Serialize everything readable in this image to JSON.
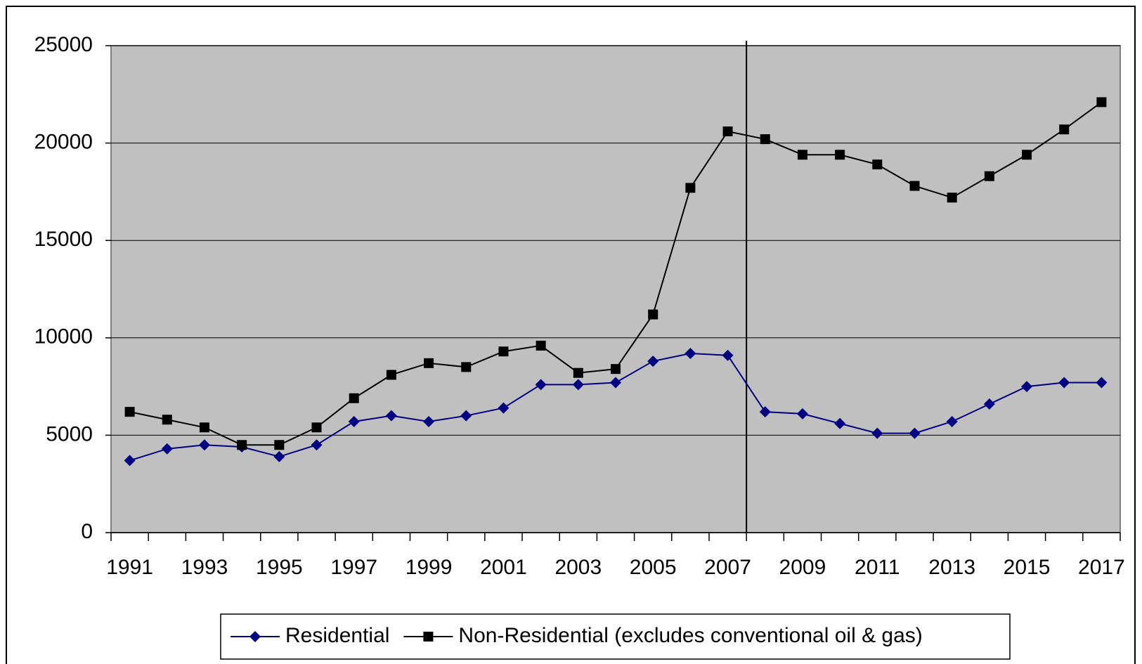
{
  "chart_data": {
    "type": "line",
    "categories": [
      "1991",
      null,
      "1993",
      null,
      "1995",
      null,
      "1997",
      null,
      "1999",
      null,
      "2001",
      null,
      "2003",
      null,
      "2005",
      null,
      "2007",
      null,
      "2009",
      null,
      "2011",
      null,
      "2013",
      null,
      "2015",
      null,
      "2017"
    ],
    "series": [
      {
        "name": "Residential",
        "color": "#000080",
        "marker": "diamond",
        "values": [
          3700,
          4300,
          4500,
          4400,
          3900,
          4500,
          5700,
          6000,
          5700,
          6000,
          6400,
          7600,
          7600,
          7700,
          8800,
          9200,
          9100,
          6200,
          6100,
          5600,
          5100,
          5100,
          5700,
          6600,
          7500,
          7700,
          7700
        ]
      },
      {
        "name": "Non-Residential (excludes conventional oil & gas)",
        "color": "#000000",
        "marker": "square",
        "values": [
          6200,
          5800,
          5400,
          4500,
          4500,
          5400,
          6900,
          8100,
          8700,
          8500,
          9300,
          9600,
          8200,
          8400,
          11200,
          17700,
          20600,
          20200,
          19400,
          19400,
          18900,
          17800,
          17200,
          18300,
          19400,
          20700,
          22100
        ]
      }
    ],
    "ylim": [
      0,
      25000
    ],
    "yticks": [
      0,
      5000,
      10000,
      15000,
      20000,
      25000
    ],
    "grid": true,
    "legend": "bottom"
  }
}
